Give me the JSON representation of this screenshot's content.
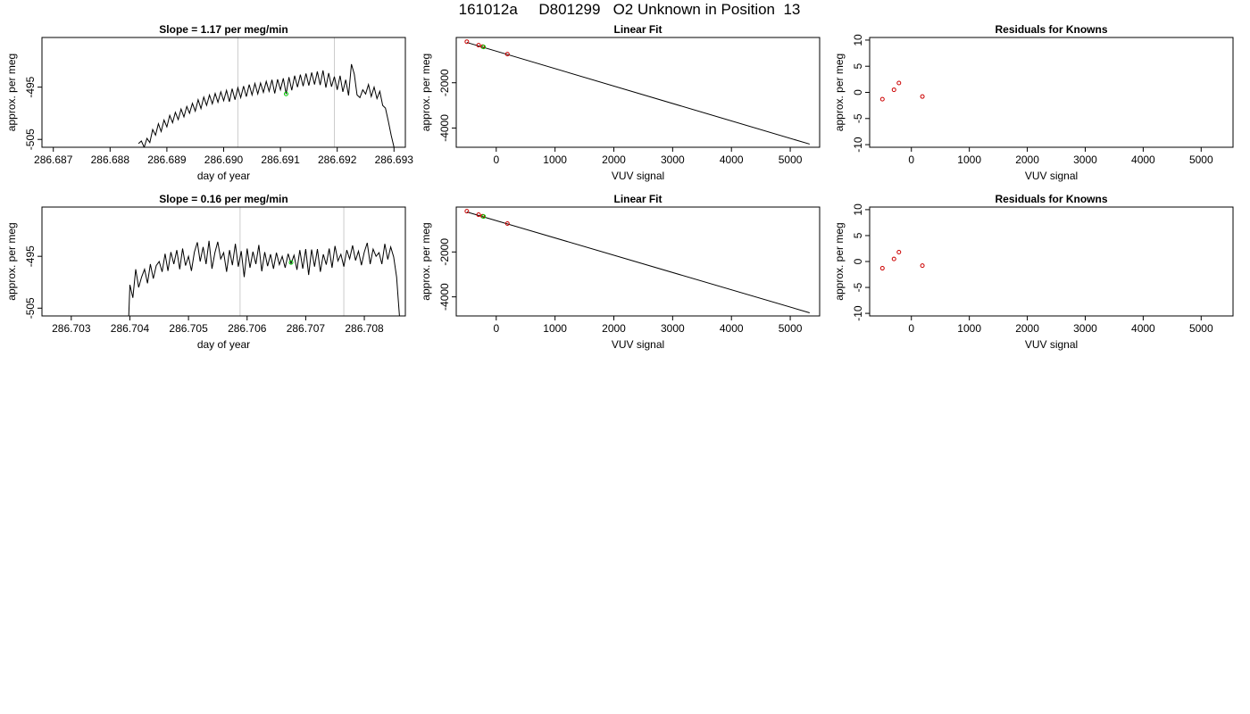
{
  "page_title": "161012a     D801299   O2 Unknown in Position  13",
  "chart_data": [
    {
      "type": "line",
      "title": "Slope =  1.17  per meg/min",
      "xlabel": "day of year",
      "ylabel": "approx. per meg",
      "xlim": [
        286.6868,
        286.6932
      ],
      "ylim": [
        -506.5,
        -485.5
      ],
      "xticks": [
        "286.687",
        "286.688",
        "286.689",
        "286.690",
        "286.691",
        "286.692",
        "286.693"
      ],
      "yticks": [
        "-495",
        "-505"
      ],
      "vlines": [
        286.69025,
        286.69195
      ],
      "marker_point": {
        "x": 286.6911,
        "y": -496.3,
        "color": "#00cc00"
      },
      "line_color": "#000000",
      "vline_color": "#cccccc",
      "series": [
        {
          "values_x": [
            286.6885,
            286.68855,
            286.6886,
            286.68865,
            286.6887,
            286.68875,
            286.6888,
            286.68885,
            286.6889,
            286.68895,
            286.689,
            286.68905,
            286.6891,
            286.68915,
            286.6892,
            286.68925,
            286.6893,
            286.68935,
            286.6894,
            286.68945,
            286.6895,
            286.68955,
            286.6896,
            286.68965,
            286.6897,
            286.68975,
            286.6898,
            286.68985,
            286.6899,
            286.68995,
            286.69,
            286.69005,
            286.6901,
            286.69015,
            286.6902,
            286.69025,
            286.6903,
            286.69035,
            286.6904,
            286.69045,
            286.6905,
            286.69055,
            286.6906,
            286.69065,
            286.6907,
            286.69075,
            286.6908,
            286.69085,
            286.6909,
            286.69095,
            286.691,
            286.69105,
            286.6911,
            286.69115,
            286.6912,
            286.69125,
            286.6913,
            286.69135,
            286.6914,
            286.69145,
            286.6915,
            286.69155,
            286.6916,
            286.69165,
            286.6917,
            286.69175,
            286.6918,
            286.69185,
            286.6919,
            286.69195,
            286.692,
            286.69205,
            286.6921,
            286.69215,
            286.6922,
            286.69225,
            286.6923,
            286.69235,
            286.6924,
            286.69245,
            286.6925,
            286.69255,
            286.6926,
            286.69265,
            286.6927,
            286.69275,
            286.6928,
            286.69285,
            286.6929,
            286.69295,
            286.693
          ],
          "values_y": [
            -505.8,
            -505.3,
            -506.5,
            -504.8,
            -505.6,
            -503.1,
            -504.2,
            -502.0,
            -503.5,
            -501.3,
            -502.6,
            -500.4,
            -501.8,
            -499.8,
            -501.2,
            -499.2,
            -500.7,
            -498.7,
            -500.0,
            -498.1,
            -499.6,
            -497.4,
            -499.1,
            -496.9,
            -498.5,
            -496.5,
            -498.2,
            -496.2,
            -497.9,
            -495.9,
            -497.6,
            -495.6,
            -497.8,
            -495.3,
            -497.4,
            -495.1,
            -497.0,
            -494.8,
            -496.8,
            -494.5,
            -496.5,
            -494.3,
            -496.3,
            -494.2,
            -496.0,
            -493.9,
            -495.8,
            -493.6,
            -496.2,
            -493.5,
            -495.5,
            -493.3,
            -496.3,
            -493.1,
            -495.6,
            -492.8,
            -495.0,
            -492.6,
            -494.8,
            -492.4,
            -494.7,
            -492.2,
            -494.5,
            -492.0,
            -494.6,
            -491.8,
            -495.1,
            -492.3,
            -494.9,
            -493.0,
            -495.5,
            -492.8,
            -495.9,
            -493.6,
            -496.6,
            -490.6,
            -492.5,
            -496.5,
            -497.0,
            -495.5,
            -496.3,
            -494.5,
            -496.8,
            -495.0,
            -497.2,
            -495.8,
            -498.5,
            -499.0,
            -501.5,
            -504.2,
            -506.5
          ]
        }
      ]
    },
    {
      "type": "scatter",
      "title": "Linear Fit",
      "xlabel": "VUV signal",
      "ylabel": "approx. per meg",
      "xlim": [
        -680,
        5500
      ],
      "ylim": [
        -4850,
        0
      ],
      "xticks": [
        "0",
        "1000",
        "2000",
        "3000",
        "4000",
        "5000"
      ],
      "yticks": [
        "-2000",
        "-4000"
      ],
      "fit_line": {
        "x": [
          -500,
          5330
        ],
        "y": [
          -220,
          -4710
        ]
      },
      "points": {
        "x": [
          -500,
          -300,
          -230,
          190
        ],
        "y": [
          -185,
          -340,
          -405,
          -735
        ],
        "color": "#cc0000"
      },
      "marker_point": {
        "x": -215,
        "y": -420,
        "color": "#00cc00"
      }
    },
    {
      "type": "scatter",
      "title": "Residuals for Knowns",
      "xlabel": "VUV signal",
      "ylabel": "approx. per meg",
      "xlim": [
        -720,
        5550
      ],
      "ylim": [
        -10.5,
        10.5
      ],
      "xticks": [
        "0",
        "1000",
        "2000",
        "3000",
        "4000",
        "5000"
      ],
      "yticks": [
        "-10",
        "-5",
        "0",
        "5",
        "10"
      ],
      "points": {
        "x": [
          -500,
          -300,
          -215,
          190
        ],
        "y": [
          -1.3,
          0.5,
          1.8,
          -0.8
        ],
        "color": "#cc0000"
      }
    },
    {
      "type": "line",
      "title": "Slope =  0.16  per meg/min",
      "xlabel": "day of year",
      "ylabel": "approx. per meg",
      "xlim": [
        286.7025,
        286.7087
      ],
      "ylim": [
        -506.5,
        -485.5
      ],
      "xticks": [
        "286.703",
        "286.704",
        "286.705",
        "286.706",
        "286.707",
        "286.708"
      ],
      "yticks": [
        "-495",
        "-505"
      ],
      "vlines": [
        286.70588,
        286.70765
      ],
      "marker_point": {
        "x": 286.70675,
        "y": -496.2,
        "color": "#00cc00"
      },
      "line_color": "#000000",
      "vline_color": "#cccccc",
      "series": [
        {
          "values_x": [
            286.70398,
            286.704,
            286.70405,
            286.7041,
            286.70415,
            286.7042,
            286.70425,
            286.7043,
            286.70435,
            286.7044,
            286.70445,
            286.7045,
            286.70455,
            286.7046,
            286.70465,
            286.7047,
            286.70475,
            286.7048,
            286.70485,
            286.7049,
            286.70495,
            286.705,
            286.70505,
            286.7051,
            286.70515,
            286.7052,
            286.70525,
            286.7053,
            286.70535,
            286.7054,
            286.70545,
            286.7055,
            286.70555,
            286.7056,
            286.70565,
            286.7057,
            286.70575,
            286.7058,
            286.70585,
            286.7059,
            286.70595,
            286.706,
            286.70605,
            286.7061,
            286.70615,
            286.7062,
            286.70625,
            286.7063,
            286.70635,
            286.7064,
            286.70645,
            286.7065,
            286.70655,
            286.7066,
            286.70665,
            286.7067,
            286.70675,
            286.7068,
            286.70685,
            286.7069,
            286.70695,
            286.707,
            286.70705,
            286.7071,
            286.70715,
            286.7072,
            286.70725,
            286.7073,
            286.70735,
            286.7074,
            286.70745,
            286.7075,
            286.70755,
            286.7076,
            286.70765,
            286.7077,
            286.70775,
            286.7078,
            286.70785,
            286.7079,
            286.70795,
            286.708,
            286.70805,
            286.7081,
            286.70815,
            286.7082,
            286.70825,
            286.7083,
            286.70835,
            286.7084,
            286.70845,
            286.7085,
            286.70855,
            286.70858,
            286.7086
          ],
          "values_y": [
            -506.5,
            -500.5,
            -503.0,
            -497.5,
            -501.0,
            -499.0,
            -497.5,
            -500.2,
            -496.5,
            -499.3,
            -496.8,
            -496.0,
            -498.0,
            -494.5,
            -497.8,
            -494.2,
            -496.5,
            -493.8,
            -497.5,
            -493.5,
            -496.8,
            -495.0,
            -497.8,
            -494.2,
            -492.3,
            -496.0,
            -493.2,
            -496.5,
            -492.0,
            -497.4,
            -494.3,
            -492.2,
            -495.5,
            -494.3,
            -498.0,
            -493.8,
            -496.7,
            -492.6,
            -497.0,
            -494.0,
            -499.0,
            -493.5,
            -497.2,
            -494.1,
            -496.5,
            -492.8,
            -497.9,
            -494.2,
            -496.9,
            -494.6,
            -497.4,
            -494.3,
            -496.6,
            -495.0,
            -497.2,
            -494.5,
            -496.4,
            -494.8,
            -497.6,
            -493.8,
            -497.4,
            -493.6,
            -498.6,
            -493.7,
            -497.0,
            -493.6,
            -498.0,
            -494.6,
            -496.6,
            -493.5,
            -497.2,
            -493.0,
            -495.9,
            -494.6,
            -497.0,
            -493.8,
            -495.5,
            -492.9,
            -495.8,
            -494.0,
            -496.7,
            -494.2,
            -492.4,
            -496.5,
            -493.6,
            -495.0,
            -494.3,
            -496.5,
            -492.6,
            -495.6,
            -493.2,
            -495.1,
            -499.0,
            -503.5,
            -506.5
          ]
        }
      ]
    },
    {
      "type": "scatter",
      "title": "Linear Fit",
      "xlabel": "VUV signal",
      "ylabel": "approx. per meg",
      "xlim": [
        -680,
        5500
      ],
      "ylim": [
        -4850,
        0
      ],
      "xticks": [
        "0",
        "1000",
        "2000",
        "3000",
        "4000",
        "5000"
      ],
      "yticks": [
        "-2000",
        "-4000"
      ],
      "fit_line": {
        "x": [
          -500,
          5330
        ],
        "y": [
          -220,
          -4710
        ]
      },
      "points": {
        "x": [
          -500,
          -300,
          -230,
          190
        ],
        "y": [
          -185,
          -340,
          -405,
          -735
        ],
        "color": "#cc0000"
      },
      "marker_point": {
        "x": -215,
        "y": -420,
        "color": "#00cc00"
      }
    },
    {
      "type": "scatter",
      "title": "Residuals for Knowns",
      "xlabel": "VUV signal",
      "ylabel": "approx. per meg",
      "xlim": [
        -720,
        5550
      ],
      "ylim": [
        -10.5,
        10.5
      ],
      "xticks": [
        "0",
        "1000",
        "2000",
        "3000",
        "4000",
        "5000"
      ],
      "yticks": [
        "-10",
        "-5",
        "0",
        "5",
        "10"
      ],
      "points": {
        "x": [
          -500,
          -300,
          -215,
          190
        ],
        "y": [
          -1.3,
          0.5,
          1.8,
          -0.8
        ],
        "color": "#cc0000"
      }
    }
  ]
}
